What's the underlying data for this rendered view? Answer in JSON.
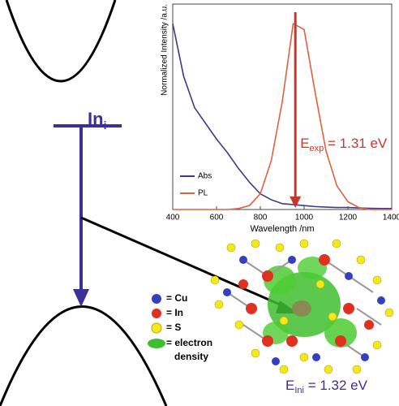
{
  "chart_data": {
    "type": "line",
    "ylabel": "Normalized Intensity /a.u.",
    "xlabel": "Wavelength /nm",
    "x": [
      400,
      450,
      500,
      550,
      600,
      650,
      700,
      750,
      800,
      850,
      900,
      950,
      1000,
      1050,
      1100,
      1150,
      1200,
      1250,
      1300,
      1350,
      1400
    ],
    "series": [
      {
        "name": "Abs",
        "color": "#3d3a8c",
        "values": [
          0.95,
          0.68,
          0.52,
          0.44,
          0.36,
          0.29,
          0.21,
          0.14,
          0.08,
          0.05,
          0.03,
          0.025,
          0.02,
          0.015,
          0.012,
          0.01,
          0.01,
          0.008,
          0.006,
          0.005,
          0.005
        ]
      },
      {
        "name": "PL",
        "color": "#e2603f",
        "values": [
          0,
          0,
          0,
          0,
          0,
          0,
          0.005,
          0.02,
          0.08,
          0.25,
          0.55,
          0.95,
          0.92,
          0.6,
          0.3,
          0.12,
          0.04,
          0.01,
          0,
          0,
          0
        ]
      }
    ],
    "xlim": [
      400,
      1400
    ],
    "xticks": [
      400,
      600,
      800,
      1000,
      1200,
      1400
    ],
    "ylim": [
      0,
      1.05
    ],
    "annotation": {
      "main": "E",
      "sub": "exp",
      "rest": " = 1.31 eV",
      "x": 960
    }
  },
  "diagram": {
    "level": {
      "main": "In",
      "sub": "i"
    },
    "legend": [
      {
        "label": "= Cu"
      },
      {
        "label": "= In"
      },
      {
        "label": "= S"
      },
      {
        "label": [
          "= electron",
          "density"
        ]
      }
    ],
    "energy": {
      "main": "E",
      "sub": "Ini",
      "rest": " = 1.32 eV"
    }
  }
}
